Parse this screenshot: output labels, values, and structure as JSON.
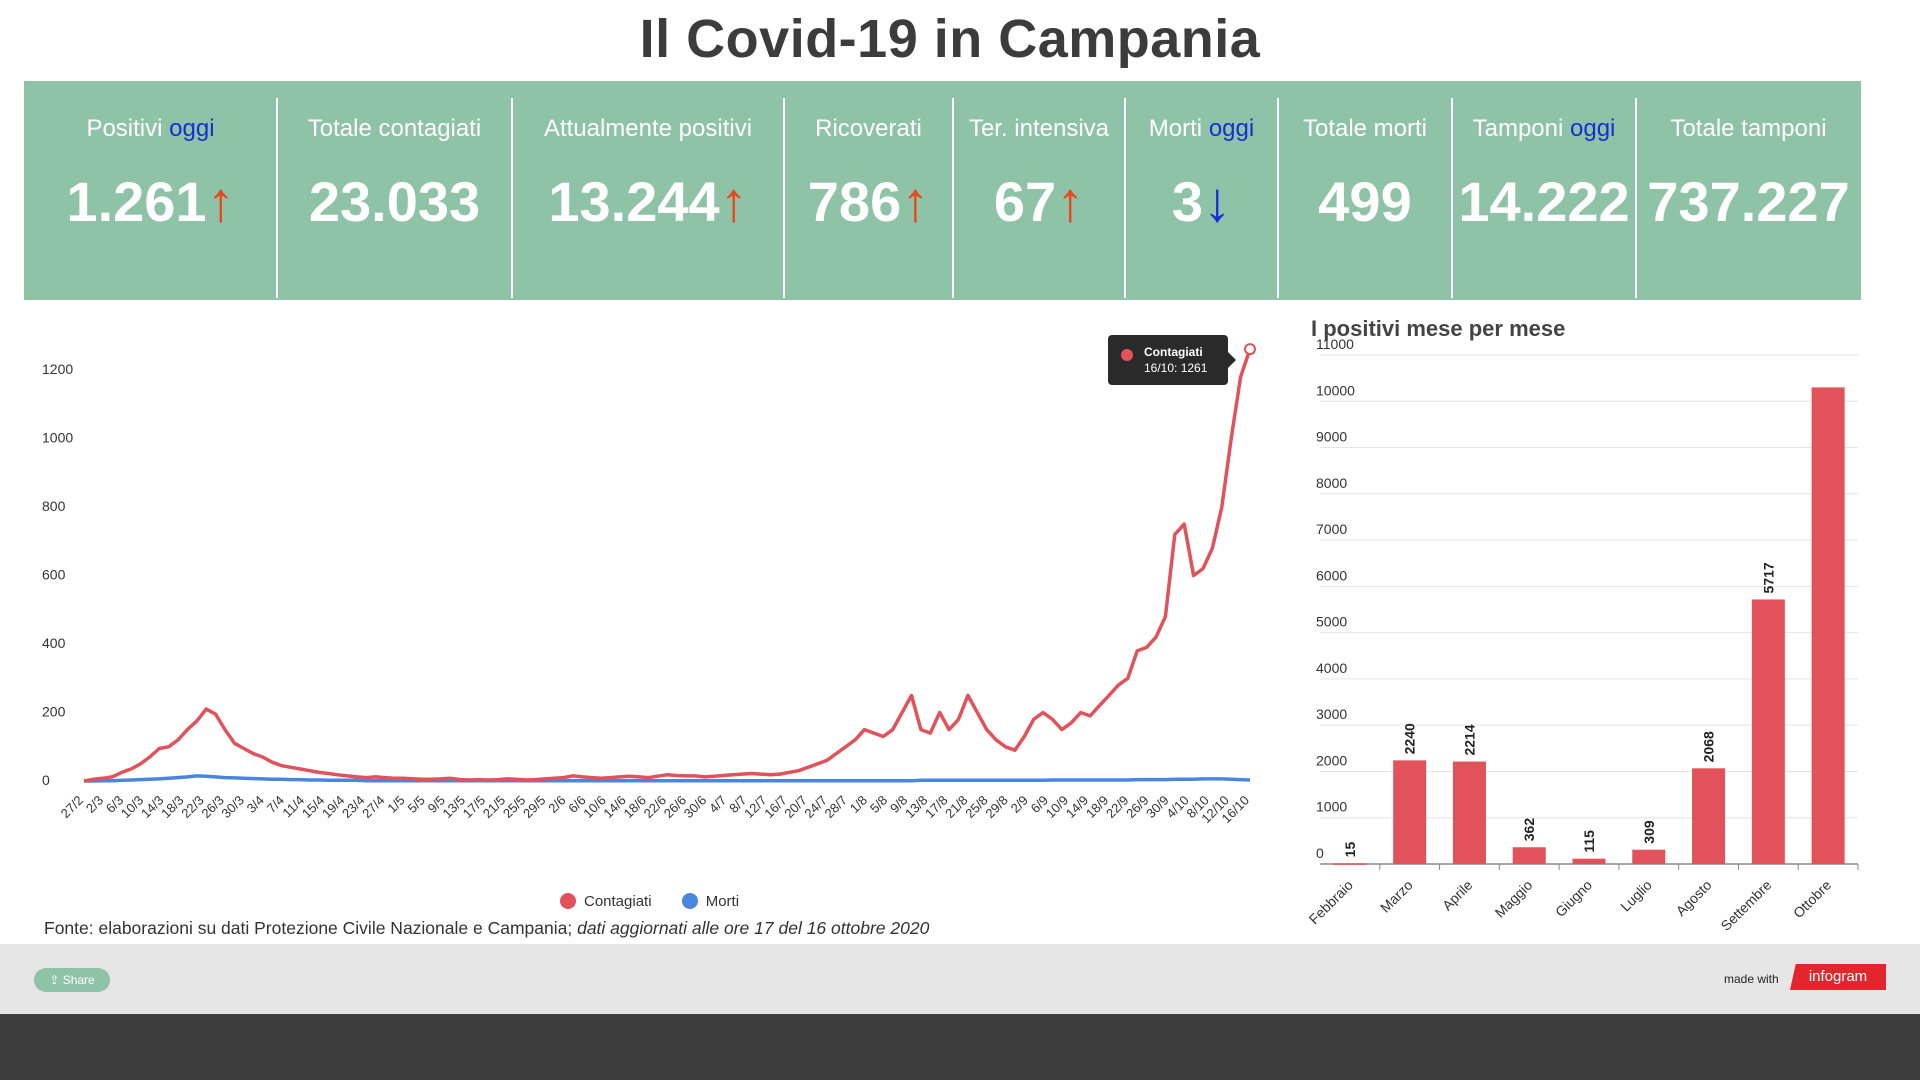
{
  "page": {
    "title": "Il Covid-19 in Campania",
    "source_prefix": "Fonte: elaborazioni su dati Protezione Civile Nazionale e Campania;",
    "source_italic": "dati aggiornati alle ore 17 del 16 ottobre 2020"
  },
  "stats": [
    {
      "label": "Positivi",
      "label_highlight": "oggi",
      "value": "1.261",
      "trend": "↑",
      "trend_dir": "up"
    },
    {
      "label": "Totale contagiati",
      "label_highlight": "",
      "value": "23.033",
      "trend": "",
      "trend_dir": ""
    },
    {
      "label": "Attualmente positivi",
      "label_highlight": "",
      "value": "13.244",
      "trend": "↑",
      "trend_dir": "up"
    },
    {
      "label": "Ricoverati",
      "label_highlight": "",
      "value": "786",
      "trend": "↑",
      "trend_dir": "up"
    },
    {
      "label": "Ter. intensiva",
      "label_highlight": "",
      "value": "67",
      "trend": "↑",
      "trend_dir": "up"
    },
    {
      "label": "Morti",
      "label_highlight": "oggi",
      "value": "3",
      "trend": "↓",
      "trend_dir": "down"
    },
    {
      "label": "Totale morti",
      "label_highlight": "",
      "value": "499",
      "trend": "",
      "trend_dir": ""
    },
    {
      "label": "Tamponi",
      "label_highlight": "oggi",
      "value": "14.222",
      "trend": "",
      "trend_dir": ""
    },
    {
      "label": "Totale tamponi",
      "label_highlight": "",
      "value": "737.227",
      "trend": "",
      "trend_dir": ""
    }
  ],
  "colors": {
    "stats_bg": "#8fc3a7",
    "contagiati": "#e1525a",
    "morti": "#4a86e0",
    "bar": "#e1525a",
    "highlight": "#1530d8",
    "up_arrow": "#e8471f"
  },
  "tooltip": {
    "series": "Contagiati",
    "text": "16/10: 1261"
  },
  "footer": {
    "share": "Share",
    "made_with": "made with",
    "brand": "infogram"
  },
  "chart_data": [
    {
      "type": "line",
      "title": "",
      "xlabel": "",
      "ylabel": "",
      "ylim": [
        0,
        1200
      ],
      "y_ticks": [
        0,
        200,
        400,
        600,
        800,
        1000,
        1200
      ],
      "x_tick_labels": [
        "27/2",
        "2/3",
        "6/3",
        "10/3",
        "14/3",
        "18/3",
        "22/3",
        "26/3",
        "30/3",
        "3/4",
        "7/4",
        "11/4",
        "15/4",
        "19/4",
        "23/4",
        "27/4",
        "1/5",
        "5/5",
        "9/5",
        "13/5",
        "17/5",
        "21/5",
        "25/5",
        "29/5",
        "2/6",
        "6/6",
        "10/6",
        "14/6",
        "18/6",
        "22/6",
        "26/6",
        "30/6",
        "4/7",
        "8/7",
        "12/7",
        "16/7",
        "20/7",
        "24/7",
        "28/7",
        "1/8",
        "5/8",
        "9/8",
        "13/8",
        "17/8",
        "21/8",
        "25/8",
        "29/8",
        "2/9",
        "6/9",
        "10/9",
        "14/9",
        "18/9",
        "22/9",
        "26/9",
        "30/9",
        "4/10",
        "8/10",
        "12/10",
        "16/10"
      ],
      "legend": "bottom",
      "series": [
        {
          "name": "Contagiati",
          "values": [
            0,
            5,
            8,
            12,
            25,
            35,
            50,
            70,
            95,
            100,
            120,
            150,
            175,
            210,
            195,
            150,
            110,
            95,
            80,
            70,
            55,
            45,
            40,
            35,
            30,
            25,
            22,
            18,
            15,
            12,
            10,
            12,
            10,
            8,
            8,
            6,
            5,
            5,
            6,
            8,
            4,
            3,
            4,
            3,
            4,
            6,
            5,
            3,
            4,
            6,
            8,
            10,
            15,
            12,
            10,
            8,
            10,
            12,
            14,
            12,
            10,
            14,
            18,
            16,
            15,
            15,
            12,
            14,
            16,
            18,
            20,
            22,
            20,
            18,
            20,
            25,
            30,
            40,
            50,
            60,
            80,
            100,
            120,
            150,
            140,
            130,
            150,
            200,
            250,
            150,
            140,
            200,
            150,
            180,
            250,
            200,
            150,
            120,
            100,
            90,
            130,
            180,
            200,
            180,
            150,
            170,
            200,
            190,
            220,
            250,
            280,
            300,
            380,
            390,
            420,
            480,
            720,
            750,
            600,
            620,
            680,
            800,
            1000,
            1180,
            1261
          ]
        },
        {
          "name": "Morti",
          "values": [
            0,
            0,
            1,
            1,
            2,
            3,
            4,
            5,
            6,
            8,
            10,
            12,
            15,
            14,
            12,
            10,
            9,
            8,
            7,
            6,
            5,
            5,
            4,
            4,
            3,
            3,
            2,
            2,
            2,
            2,
            1,
            1,
            1,
            1,
            1,
            1,
            1,
            1,
            1,
            1,
            1,
            1,
            1,
            1,
            1,
            1,
            1,
            1,
            1,
            1,
            1,
            1,
            1,
            1,
            1,
            1,
            1,
            1,
            1,
            1,
            1,
            1,
            1,
            1,
            1,
            1,
            1,
            1,
            1,
            1,
            1,
            1,
            1,
            1,
            1,
            1,
            1,
            1,
            1,
            1,
            1,
            1,
            1,
            1,
            1,
            1,
            1,
            1,
            1,
            2,
            2,
            2,
            2,
            2,
            2,
            2,
            2,
            2,
            2,
            2,
            2,
            2,
            2,
            3,
            3,
            3,
            3,
            3,
            3,
            3,
            3,
            3,
            4,
            4,
            4,
            4,
            5,
            5,
            5,
            6,
            6,
            6,
            5,
            4,
            3
          ]
        }
      ]
    },
    {
      "type": "bar",
      "title": "I positivi mese per mese",
      "xlabel": "",
      "ylabel": "",
      "ylim": [
        0,
        11000
      ],
      "y_ticks": [
        0,
        1000,
        2000,
        3000,
        4000,
        5000,
        6000,
        7000,
        8000,
        9000,
        10000,
        11000
      ],
      "categories": [
        "Febbraio",
        "Marzo",
        "Aprile",
        "Maggio",
        "Giugno",
        "Luglio",
        "Agosto",
        "Settembre",
        "Ottobre"
      ],
      "values": [
        15,
        2240,
        2214,
        362,
        115,
        309,
        2068,
        5717,
        10300
      ],
      "data_labels": [
        "15",
        "2240",
        "2214",
        "362",
        "115",
        "309",
        "2068",
        "5717",
        ""
      ]
    }
  ]
}
